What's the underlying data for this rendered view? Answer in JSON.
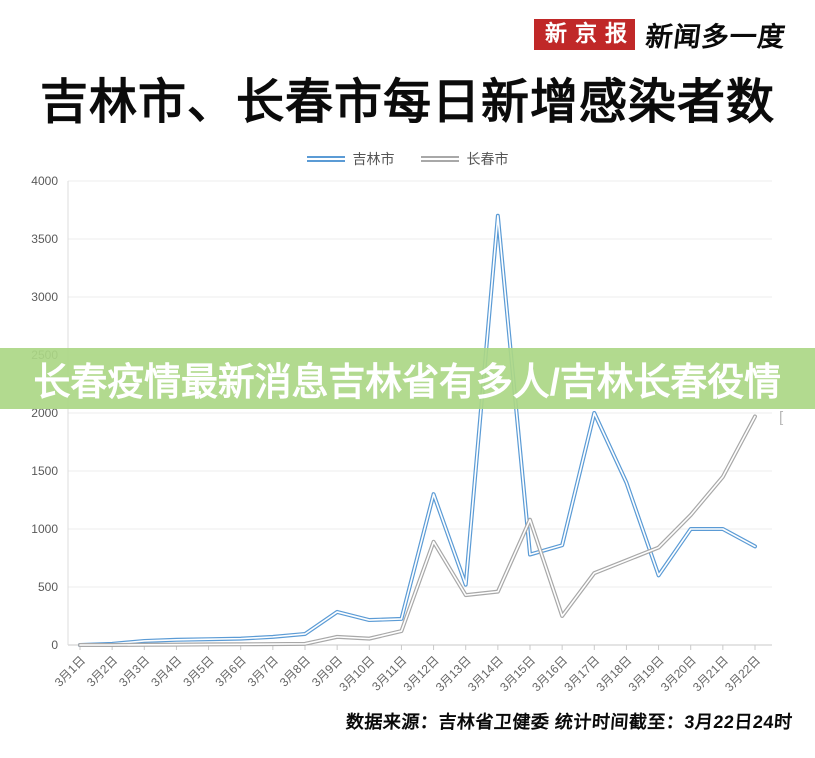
{
  "header": {
    "logo_text": "新京报",
    "slogan": "新闻多一度",
    "title": "吉林市、长春市每日新增感染者数"
  },
  "overlay": {
    "text": "长春疫情最新消息吉林省有多人/吉林长春役情"
  },
  "footer": {
    "source": "数据来源：吉林省卫健委  统计时间截至：3月22日24时"
  },
  "artifact": {
    "bracket": "["
  },
  "colors": {
    "jilin_line": "#5b9bd5",
    "changchun_line": "#a8a8a8",
    "banner_green": "#abd786",
    "logo_red": "#c02828",
    "axis": "#c9c9c9",
    "grid": "#ececec",
    "tick_label": "#666666"
  },
  "chart_data": {
    "type": "line",
    "title": "吉林市、长春市每日新增感染者数",
    "xlabel": "",
    "ylabel": "",
    "ylim": [
      0,
      4000
    ],
    "yticks": [
      0,
      500,
      1000,
      1500,
      2000,
      2500,
      3000,
      3500,
      4000
    ],
    "grid": true,
    "legend_position": "top",
    "categories": [
      "3月1日",
      "3月2日",
      "3月3日",
      "3月4日",
      "3月5日",
      "3月6日",
      "3月7日",
      "3月8日",
      "3月9日",
      "3月10日",
      "3月11日",
      "3月12日",
      "3月13日",
      "3月14日",
      "3月15日",
      "3月16日",
      "3月17日",
      "3月18日",
      "3月19日",
      "3月20日",
      "3月21日",
      "3月22日"
    ],
    "series": [
      {
        "name": "吉林市",
        "color": "#5b9bd5",
        "values": [
          0,
          10,
          35,
          45,
          50,
          55,
          70,
          95,
          285,
          215,
          225,
          1300,
          520,
          3700,
          780,
          860,
          2000,
          1400,
          600,
          1000,
          1000,
          850
        ]
      },
      {
        "name": "长春市",
        "color": "#a8a8a8",
        "values": [
          0,
          0,
          2,
          3,
          5,
          6,
          8,
          10,
          70,
          55,
          120,
          890,
          430,
          460,
          1080,
          250,
          620,
          730,
          840,
          1120,
          1450,
          1970
        ]
      }
    ]
  }
}
